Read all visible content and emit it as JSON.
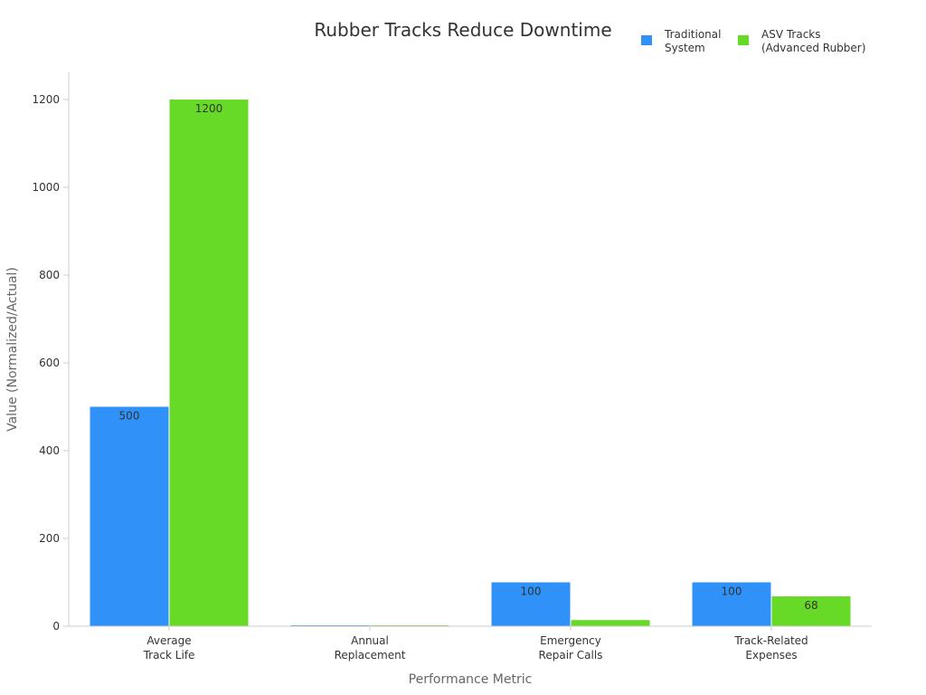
{
  "chart_data": {
    "type": "bar",
    "title": "Rubber Tracks Reduce Downtime",
    "xlabel": "Performance Metric",
    "ylabel": "Value (Normalized/Actual)",
    "categories": [
      [
        "Average",
        "Track Life"
      ],
      [
        "Annual",
        "Replacement"
      ],
      [
        "Emergency",
        "Repair Calls"
      ],
      [
        "Track-Related",
        "Expenses"
      ]
    ],
    "series": [
      {
        "name": [
          "Traditional",
          "System"
        ],
        "color": "#3092f8",
        "values": [
          500,
          2,
          100,
          100
        ],
        "labels": [
          "500",
          "",
          "100",
          "100"
        ]
      },
      {
        "name": [
          "ASV Tracks",
          "(Advanced Rubber)"
        ],
        "color": "#66da26",
        "values": [
          1200,
          1,
          14,
          68
        ],
        "labels": [
          "1200",
          "",
          "",
          "68"
        ]
      }
    ],
    "ylim": [
      0,
      1260
    ],
    "yticks": [
      0,
      200,
      400,
      600,
      800,
      1000,
      1200
    ],
    "grid": false,
    "legend_position": "top-right"
  }
}
